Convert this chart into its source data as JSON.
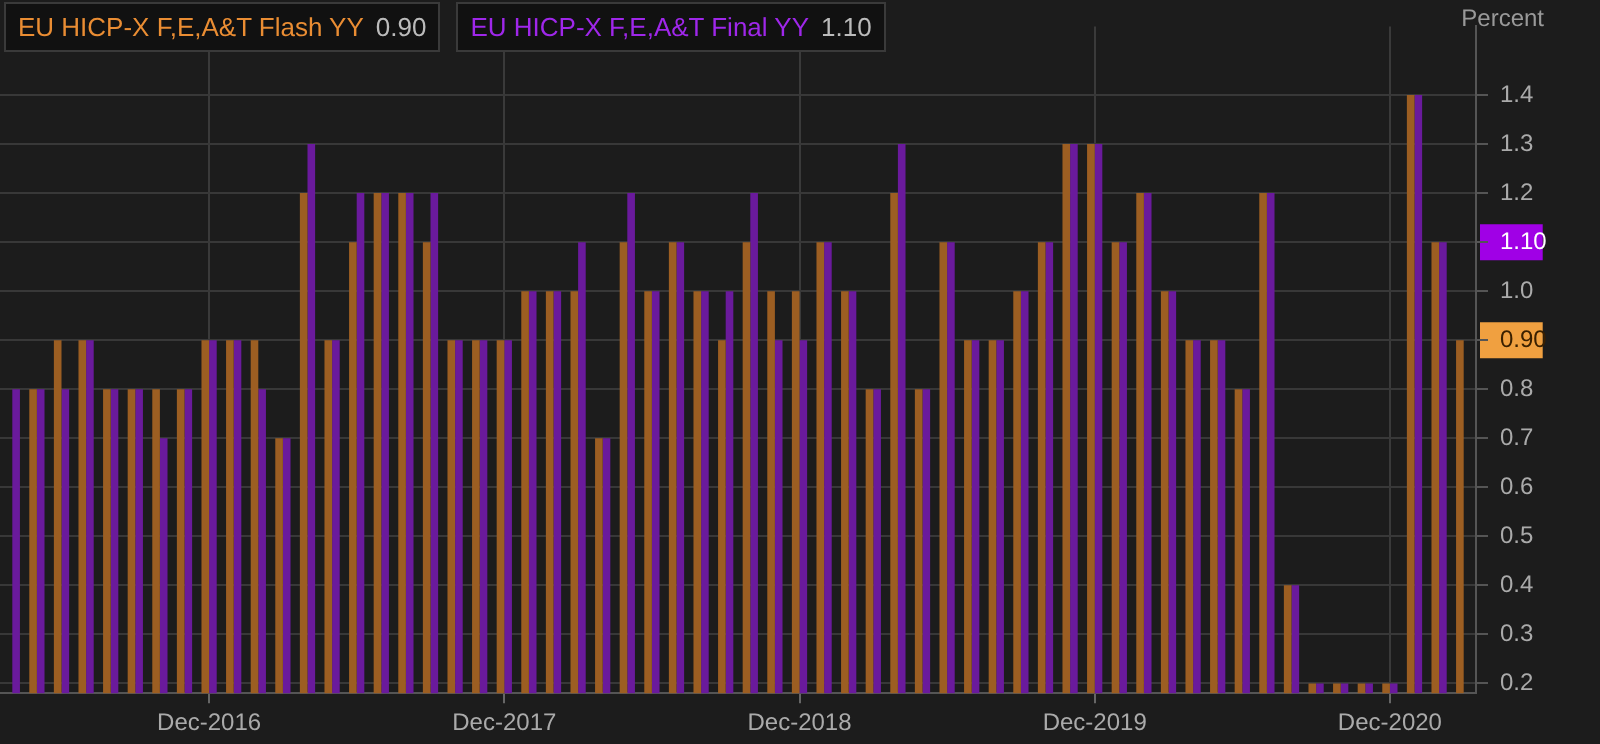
{
  "chart_data": {
    "type": "bar",
    "ylabel": "Percent",
    "categories": [
      null,
      null,
      null,
      null,
      null,
      null,
      null,
      null,
      "Dec-2016",
      null,
      null,
      null,
      null,
      null,
      null,
      null,
      null,
      null,
      null,
      null,
      "Dec-2017",
      null,
      null,
      null,
      null,
      null,
      null,
      null,
      null,
      null,
      null,
      null,
      "Dec-2018",
      null,
      null,
      null,
      null,
      null,
      null,
      null,
      null,
      null,
      null,
      null,
      "Dec-2019",
      null,
      null,
      null,
      null,
      null,
      null,
      null,
      null,
      null,
      null,
      null,
      "Dec-2020",
      null,
      null,
      null
    ],
    "series": [
      {
        "name": "EU HICP-X F,E,A&T Flash YY",
        "color": "#9c5e22",
        "values": [
          null,
          0.8,
          0.9,
          0.9,
          0.8,
          0.8,
          0.8,
          0.8,
          0.9,
          0.9,
          0.9,
          0.7,
          1.2,
          0.9,
          1.1,
          1.2,
          1.2,
          1.1,
          0.9,
          0.9,
          0.9,
          1.0,
          1.0,
          1.0,
          0.7,
          1.1,
          1.0,
          1.1,
          1.0,
          0.9,
          1.1,
          1.0,
          1.0,
          1.1,
          1.0,
          0.8,
          1.2,
          0.8,
          1.1,
          0.9,
          0.9,
          1.0,
          1.1,
          1.3,
          1.3,
          1.1,
          1.2,
          1.0,
          0.9,
          0.9,
          0.8,
          1.2,
          0.4,
          0.2,
          0.2,
          0.2,
          0.2,
          1.4,
          1.1,
          0.9
        ]
      },
      {
        "name": "EU HICP-X F,E,A&T Final YY",
        "color": "#6a1a9c",
        "values": [
          0.8,
          0.8,
          0.8,
          0.9,
          0.8,
          0.8,
          0.7,
          0.8,
          0.9,
          0.9,
          0.8,
          0.7,
          1.3,
          0.9,
          1.2,
          1.2,
          1.2,
          1.2,
          0.9,
          0.9,
          0.9,
          1.0,
          1.0,
          1.1,
          0.7,
          1.2,
          1.0,
          1.1,
          1.0,
          1.0,
          1.2,
          0.9,
          0.9,
          1.1,
          1.0,
          0.8,
          1.3,
          0.8,
          1.1,
          0.9,
          0.9,
          1.0,
          1.1,
          1.3,
          1.3,
          1.1,
          1.2,
          1.0,
          0.9,
          0.9,
          0.8,
          1.2,
          0.4,
          0.2,
          0.2,
          0.2,
          0.2,
          1.4,
          1.1,
          null
        ]
      }
    ],
    "annotations": [
      "0.90",
      "1.10"
    ],
    "ylim": [
      0.18,
      1.54
    ],
    "yticks": [
      0.2,
      0.3,
      0.4,
      0.5,
      0.6,
      0.7,
      0.8,
      {
        "value": 0.9,
        "label": "0.90"
      },
      {
        "value": 1,
        "label": "1.0"
      },
      {
        "value": 1.1,
        "label": "1.10"
      },
      1.2,
      1.3,
      1.4
    ],
    "grid": true,
    "legend": "top left"
  }
}
